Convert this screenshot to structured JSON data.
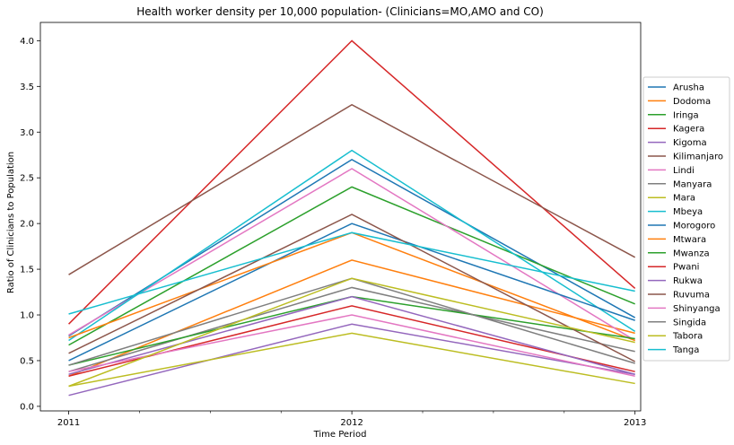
{
  "chart_data": {
    "type": "line",
    "title": "Health worker density per 10,000 population- (Clinicians=MO,AMO and CO)",
    "xlabel": "Time Period",
    "ylabel": "Ratio of Clinicians to Population",
    "x": [
      2011,
      2012,
      2013
    ],
    "x_tick_labels": [
      "2011",
      "2012",
      "2013"
    ],
    "ylim": [
      -0.05,
      4.2
    ],
    "y_ticks": [
      0.0,
      0.5,
      1.0,
      1.5,
      2.0,
      2.5,
      3.0,
      3.5,
      4.0
    ],
    "y_tick_labels": [
      "0.0",
      "0.5",
      "1.0",
      "1.5",
      "2.0",
      "2.5",
      "3.0",
      "3.5",
      "4.0"
    ],
    "legend_position": "right",
    "grid": false,
    "series": [
      {
        "name": "Arusha",
        "color": "#1f77b4",
        "values": [
          0.77,
          2.7,
          0.97
        ]
      },
      {
        "name": "Dodoma",
        "color": "#ff7f0e",
        "values": [
          0.33,
          1.6,
          0.8
        ]
      },
      {
        "name": "Iringa",
        "color": "#2ca02c",
        "values": [
          0.67,
          2.4,
          1.12
        ]
      },
      {
        "name": "Kagera",
        "color": "#d62728",
        "values": [
          0.9,
          4.0,
          1.29
        ]
      },
      {
        "name": "Kigoma",
        "color": "#9467bd",
        "values": [
          0.12,
          0.9,
          0.35
        ]
      },
      {
        "name": "Kilimanjaro",
        "color": "#8c564b",
        "values": [
          1.44,
          3.3,
          1.63
        ]
      },
      {
        "name": "Lindi",
        "color": "#e377c2",
        "values": [
          0.78,
          2.6,
          0.72
        ]
      },
      {
        "name": "Manyara",
        "color": "#7f7f7f",
        "values": [
          0.38,
          1.3,
          0.6
        ]
      },
      {
        "name": "Mara",
        "color": "#bcbd22",
        "values": [
          0.22,
          0.8,
          0.25
        ]
      },
      {
        "name": "Mbeya",
        "color": "#17becf",
        "values": [
          0.72,
          2.8,
          0.82
        ]
      },
      {
        "name": "Morogoro",
        "color": "#1f77b4",
        "values": [
          0.5,
          2.0,
          0.94
        ]
      },
      {
        "name": "Mtwara",
        "color": "#ff7f0e",
        "values": [
          0.75,
          1.9,
          0.72
        ]
      },
      {
        "name": "Mwanza",
        "color": "#2ca02c",
        "values": [
          0.45,
          1.2,
          0.74
        ]
      },
      {
        "name": "Pwani",
        "color": "#d62728",
        "values": [
          0.33,
          1.1,
          0.38
        ]
      },
      {
        "name": "Rukwa",
        "color": "#9467bd",
        "values": [
          0.35,
          1.2,
          0.35
        ]
      },
      {
        "name": "Ruvuma",
        "color": "#8c564b",
        "values": [
          0.58,
          2.1,
          0.49
        ]
      },
      {
        "name": "Shinyanga",
        "color": "#e377c2",
        "values": [
          0.38,
          1.0,
          0.33
        ]
      },
      {
        "name": "Singida",
        "color": "#7f7f7f",
        "values": [
          0.45,
          1.4,
          0.47
        ]
      },
      {
        "name": "Tabora",
        "color": "#bcbd22",
        "values": [
          0.22,
          1.4,
          0.7
        ]
      },
      {
        "name": "Tanga",
        "color": "#17becf",
        "values": [
          1.01,
          1.9,
          1.26
        ]
      }
    ]
  }
}
